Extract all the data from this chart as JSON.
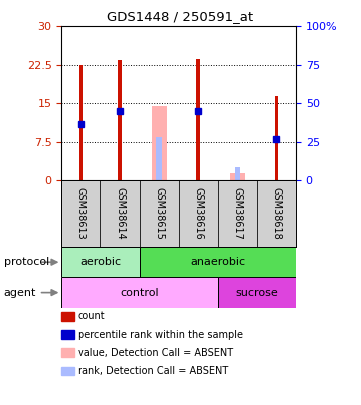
{
  "title": "GDS1448 / 250591_at",
  "samples": [
    "GSM38613",
    "GSM38614",
    "GSM38615",
    "GSM38616",
    "GSM38617",
    "GSM38618"
  ],
  "red_bars": [
    22.5,
    23.5,
    0,
    23.7,
    0,
    16.5
  ],
  "blue_dots": [
    11.0,
    13.5,
    0,
    13.5,
    0,
    8.0
  ],
  "pink_bars": [
    0,
    0,
    14.5,
    0,
    1.5,
    0
  ],
  "lightblue_bars": [
    0,
    0,
    8.5,
    0,
    2.5,
    0
  ],
  "ylim_left": [
    0,
    30
  ],
  "yticks_left": [
    0,
    7.5,
    15,
    22.5,
    30
  ],
  "ytick_labels_left": [
    "0",
    "7.5",
    "15",
    "22.5",
    "30"
  ],
  "yticks_right_vals": [
    0,
    7.5,
    15,
    22.5,
    30
  ],
  "ytick_labels_right": [
    "0",
    "25",
    "50",
    "75",
    "100%"
  ],
  "red_color": "#cc1100",
  "blue_color": "#0000cc",
  "pink_color": "#ffb0b0",
  "lightblue_color": "#aabbff",
  "bg_color": "#d0d0d0",
  "protocol_aerobic_color": "#aaeebb",
  "protocol_anaerobic_color": "#55dd55",
  "agent_control_color": "#ffaaff",
  "agent_sucrose_color": "#dd44dd",
  "legend_items": [
    {
      "color": "#cc1100",
      "label": "count"
    },
    {
      "color": "#0000cc",
      "label": "percentile rank within the sample"
    },
    {
      "color": "#ffb0b0",
      "label": "value, Detection Call = ABSENT"
    },
    {
      "color": "#aabbff",
      "label": "rank, Detection Call = ABSENT"
    }
  ]
}
